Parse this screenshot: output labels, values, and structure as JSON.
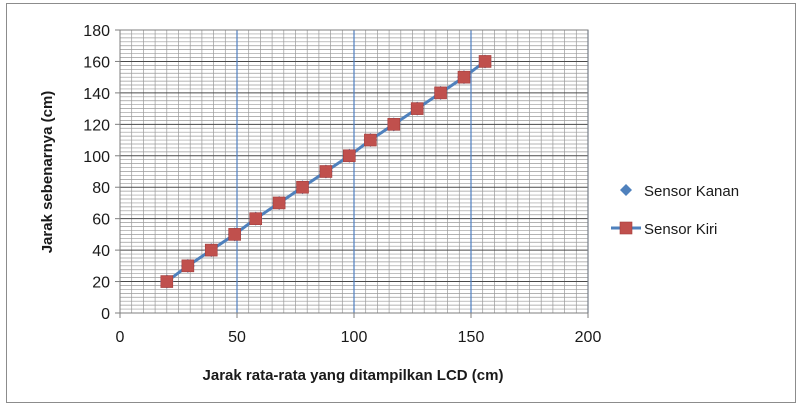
{
  "chart_data": {
    "type": "line",
    "title": "",
    "xlabel": "Jarak rata-rata yang ditampilkan LCD (cm)",
    "ylabel": "Jarak sebenarnya (cm)",
    "xlim": [
      0,
      200
    ],
    "ylim": [
      0,
      180
    ],
    "x_ticks": [
      "0",
      "50",
      "100",
      "150",
      "200"
    ],
    "y_ticks": [
      "0",
      "20",
      "40",
      "60",
      "80",
      "100",
      "120",
      "140",
      "160",
      "180"
    ],
    "grid": true,
    "legend_position": "right",
    "series": [
      {
        "name": "Sensor Kanan",
        "marker": "diamond",
        "line": false,
        "color": "#4f81bd",
        "x": [
          20,
          29,
          39,
          49,
          58,
          68,
          78,
          88,
          98,
          107,
          117,
          127,
          137,
          147,
          156
        ],
        "y": [
          20,
          30,
          40,
          50,
          60,
          70,
          80,
          90,
          100,
          110,
          120,
          130,
          140,
          150,
          160
        ]
      },
      {
        "name": "Sensor Kiri",
        "marker": "square",
        "line": true,
        "color": "#c0504d",
        "line_color": "#4f81bd",
        "x": [
          20,
          29,
          39,
          49,
          58,
          68,
          78,
          88,
          98,
          107,
          117,
          127,
          137,
          147,
          156
        ],
        "y": [
          20,
          30,
          40,
          50,
          60,
          70,
          80,
          90,
          100,
          110,
          120,
          130,
          140,
          150,
          160
        ]
      }
    ]
  }
}
